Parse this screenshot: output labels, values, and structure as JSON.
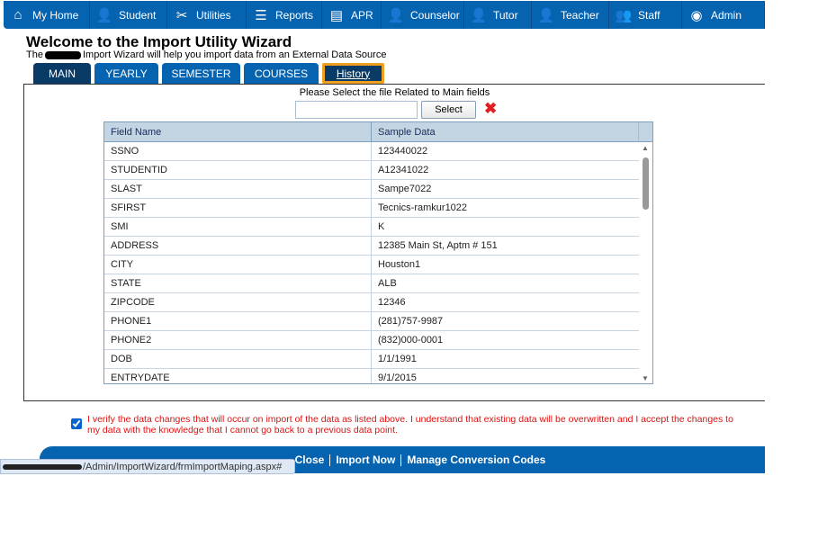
{
  "nav": [
    {
      "label": "My Home",
      "icon": "home-icon",
      "glyph": "⌂",
      "w": 96
    },
    {
      "label": "Student",
      "icon": "student-icon",
      "glyph": "👤",
      "w": 86
    },
    {
      "label": "Utilities",
      "icon": "tools-icon",
      "glyph": "✂",
      "w": 88
    },
    {
      "label": "Reports",
      "icon": "list-icon",
      "glyph": "☰",
      "w": 84
    },
    {
      "label": "APR",
      "icon": "document-icon",
      "glyph": "▤",
      "w": 66
    },
    {
      "label": "Counselor",
      "icon": "counselor-icon",
      "glyph": "👤",
      "w": 92
    },
    {
      "label": "Tutor",
      "icon": "tutor-icon",
      "glyph": "👤",
      "w": 75
    },
    {
      "label": "Teacher",
      "icon": "teacher-icon",
      "glyph": "👤",
      "w": 86
    },
    {
      "label": "Staff",
      "icon": "staff-icon",
      "glyph": "👥",
      "w": 81
    },
    {
      "label": "Admin",
      "icon": "admin-icon",
      "glyph": "◉",
      "w": 92
    }
  ],
  "header": {
    "title": "Welcome to the Import Utility Wizard",
    "subtitle_pre": "The",
    "subtitle_post": "Import Wizard will help you import data from an External Data Source"
  },
  "tabs": [
    {
      "label": "MAIN",
      "w": 64
    },
    {
      "label": "YEARLY",
      "w": 71
    },
    {
      "label": "SEMESTER",
      "w": 87
    },
    {
      "label": "COURSES",
      "w": 83
    },
    {
      "label": "History",
      "w": 69
    }
  ],
  "panel": {
    "prompt": "Please Select the file Related to Main fields",
    "file_value": "",
    "select_label": "Select"
  },
  "grid": {
    "columns": [
      "Field Name",
      "Sample Data"
    ],
    "rows": [
      [
        "SSNO",
        "123440022"
      ],
      [
        "STUDENTID",
        "A12341022"
      ],
      [
        "SLAST",
        "Sampe7022"
      ],
      [
        "SFIRST",
        "Tecnics-ramkur1022"
      ],
      [
        "SMI",
        "K"
      ],
      [
        "ADDRESS",
        "12385 Main St, Aptm # 151"
      ],
      [
        "CITY",
        "Houston1"
      ],
      [
        "STATE",
        "ALB"
      ],
      [
        "ZIPCODE",
        "12346"
      ],
      [
        "PHONE1",
        "(281)757-9987"
      ],
      [
        "PHONE2",
        "(832)000-0001"
      ],
      [
        "DOB",
        "1/1/1991"
      ],
      [
        "ENTRYDATE",
        "9/1/2015"
      ]
    ]
  },
  "verify": {
    "checked": true,
    "text": "I verify the data changes that will occur on import of the data as listed above. I understand that existing data will be overwritten and I accept the changes to my data with the knowledge that I cannot go back to a previous data point."
  },
  "footer": {
    "close": "Close",
    "import": "Import Now",
    "manage": "Manage Conversion Codes"
  },
  "status_url": "/Admin/ImportWizard/frmImportMaping.aspx#",
  "colors": {
    "brand": "#0563b0",
    "active_tab": "#0a3a66",
    "highlight": "#f0a020",
    "warning": "#e01010"
  }
}
